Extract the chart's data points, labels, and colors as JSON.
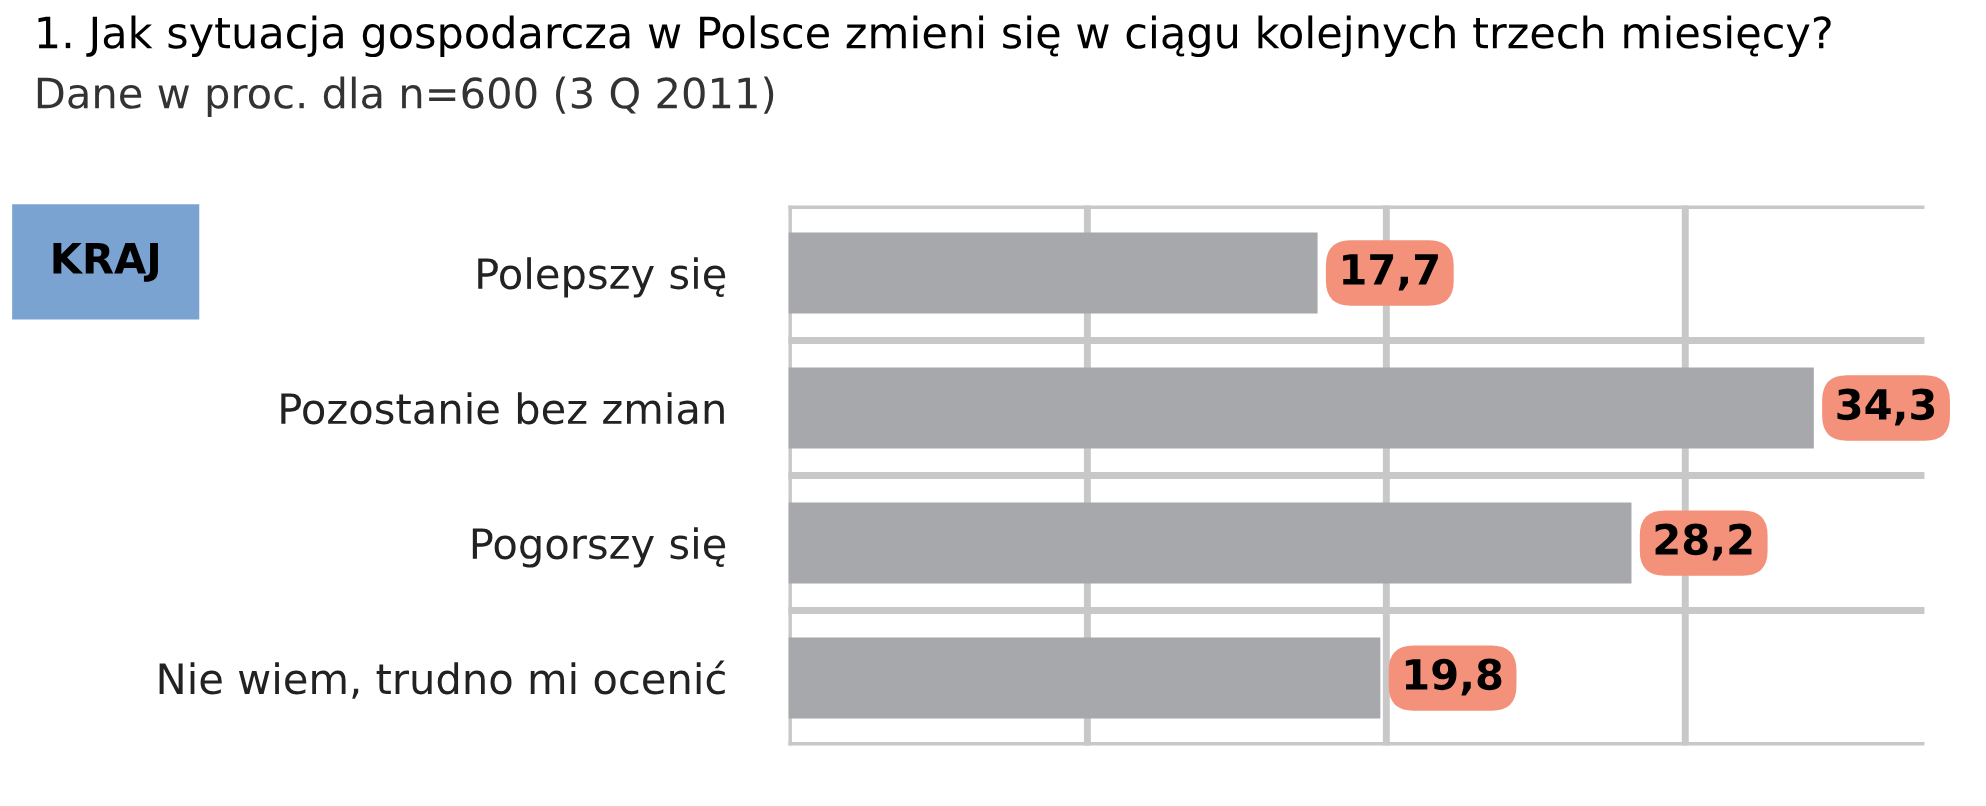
{
  "chart_data": {
    "type": "bar",
    "orientation": "horizontal",
    "title": "1. Jak sytuacja gospodarcza w Polsce zmieni się w ciągu kolejnych trzech miesięcy?",
    "subtitle": "Dane w proc. dla n=600 (3 Q 2011)",
    "annotations": [
      "KRAJ"
    ],
    "categories": [
      "Polepszy się",
      "Pozostanie bez zmian",
      "Pogorszy się",
      "Nie wiem, trudno mi ocenić"
    ],
    "values": [
      17.7,
      34.3,
      28.2,
      19.8
    ],
    "color": "#a7a8ab",
    "value_labels": [
      "17,7",
      "34,3",
      "28,2",
      "19,8"
    ],
    "xlim": [
      0,
      38
    ],
    "xticks": [
      {
        "value": 0,
        "label": null
      },
      {
        "value": 10,
        "label": null
      },
      {
        "value": 20,
        "label": null
      },
      {
        "value": 30,
        "label": null
      }
    ],
    "grid": true
  }
}
